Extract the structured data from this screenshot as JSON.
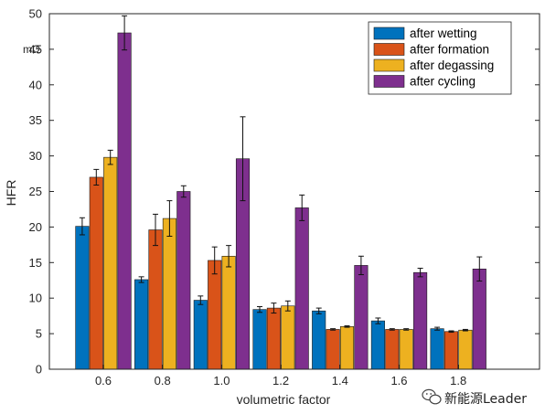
{
  "chart_data": {
    "type": "bar",
    "ylabel": "HFR",
    "yunit": "mΩ",
    "xlabel": "volumetric factor",
    "ylim": [
      0,
      50
    ],
    "yticks": [
      0,
      5,
      10,
      15,
      20,
      25,
      30,
      35,
      40,
      45,
      50
    ],
    "categories": [
      "0.6",
      "0.8",
      "1.0",
      "1.2",
      "1.4",
      "1.6",
      "1.8"
    ],
    "series": [
      {
        "name": "after wetting",
        "color": "#0072BD",
        "values": [
          20.1,
          12.6,
          9.7,
          8.4,
          8.2,
          6.8,
          5.7
        ],
        "errors": [
          1.2,
          0.4,
          0.6,
          0.4,
          0.4,
          0.4,
          0.2
        ]
      },
      {
        "name": "after formation",
        "color": "#D95319",
        "values": [
          27.0,
          19.6,
          15.3,
          8.6,
          5.6,
          5.6,
          5.3
        ],
        "errors": [
          1.1,
          2.2,
          1.9,
          0.7,
          0.1,
          0.1,
          0.1
        ]
      },
      {
        "name": "after degassing",
        "color": "#EDB120",
        "values": [
          29.8,
          21.2,
          15.9,
          8.9,
          6.0,
          5.6,
          5.5
        ],
        "errors": [
          1.0,
          2.5,
          1.5,
          0.7,
          0.1,
          0.1,
          0.1
        ]
      },
      {
        "name": "after cycling",
        "color": "#7E2F8E",
        "values": [
          47.3,
          25.0,
          29.6,
          22.7,
          14.6,
          13.6,
          14.1
        ],
        "errors": [
          2.4,
          0.8,
          5.9,
          1.8,
          1.3,
          0.6,
          1.7
        ]
      }
    ],
    "legend_position": "top-right",
    "grid": false,
    "box": true
  },
  "watermark": {
    "text": "新能源Leader",
    "icon": "wechat-icon"
  }
}
